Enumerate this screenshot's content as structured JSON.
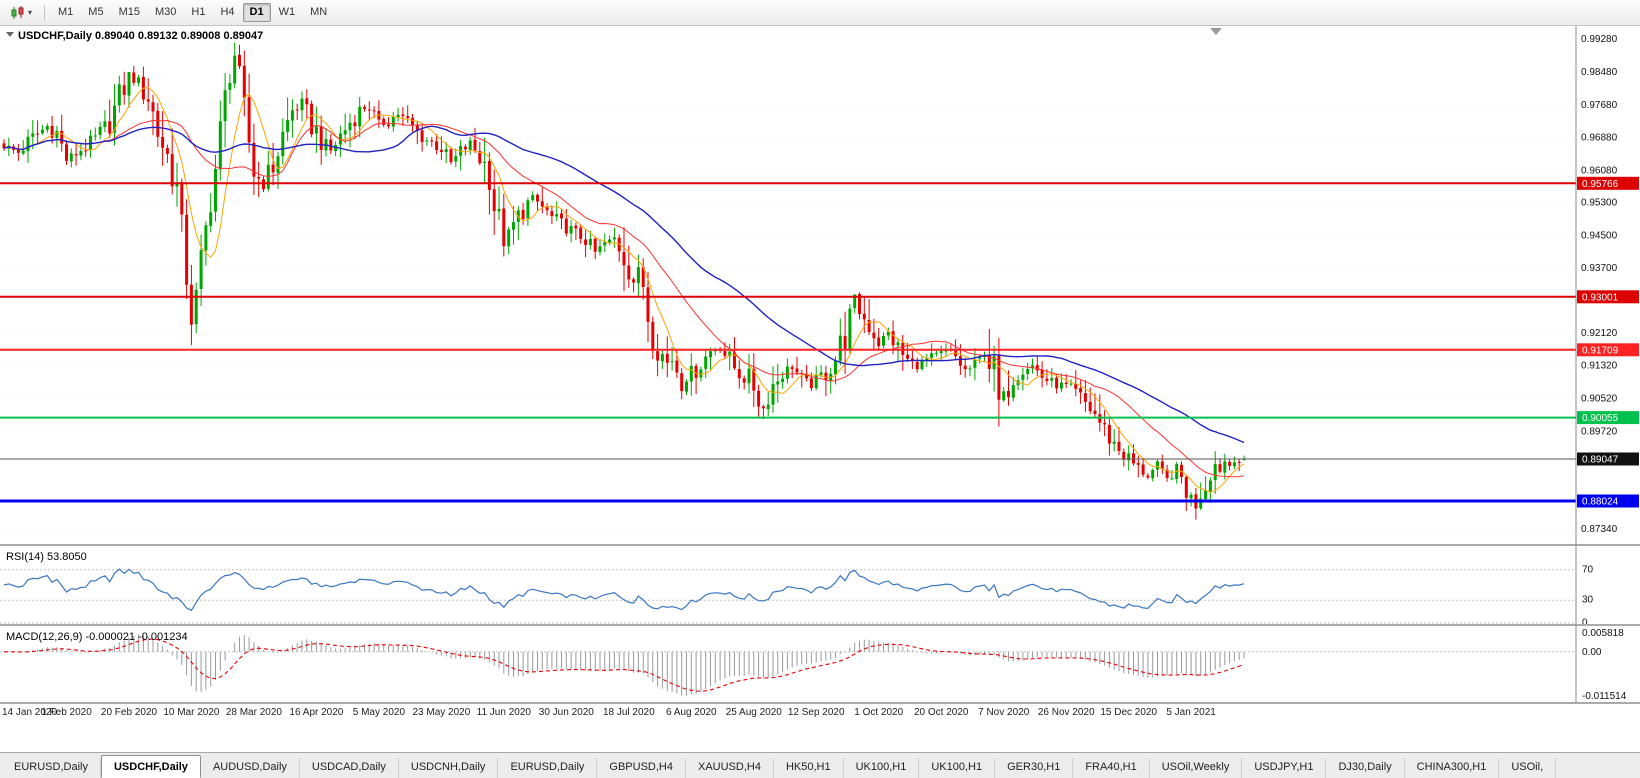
{
  "toolbar": {
    "chart_type_button": "candlestick-chart",
    "timeframes": [
      "M1",
      "M5",
      "M15",
      "M30",
      "H1",
      "H4",
      "D1",
      "W1",
      "MN"
    ],
    "active_timeframe": "D1"
  },
  "chart": {
    "title_symbol": "USDCHF,Daily",
    "title_ohlc": "0.89040 0.89132 0.89008 0.89047",
    "price_scale_labels": [
      "0.99280",
      "0.98480",
      "0.97680",
      "0.96880",
      "0.96080",
      "0.95300",
      "0.94500",
      "0.93700",
      "0.92120",
      "0.91320",
      "0.90520",
      "0.89720",
      "0.87340"
    ],
    "hlines": [
      {
        "price": 0.95766,
        "label": "0.95766",
        "color": "#dd0000",
        "width": 2
      },
      {
        "price": 0.93001,
        "label": "0.93001",
        "color": "#dd0000",
        "width": 2
      },
      {
        "price": 0.91709,
        "label": "0.91709",
        "color": "#ff2222",
        "width": 2
      },
      {
        "price": 0.90055,
        "label": "0.90055",
        "color": "#00c14e",
        "width": 2
      },
      {
        "price": 0.88024,
        "label": "0.88024",
        "color": "#0000ee",
        "width": 3
      }
    ],
    "current_price": {
      "label": "0.89047",
      "price": 0.89047
    },
    "colors": {
      "up": "#00a600",
      "down": "#e60000",
      "ma_fast": "#ffa500",
      "ma_mid": "#ff3030",
      "ma_slow": "#2121c4",
      "rsi_line": "#3a76c4",
      "macd_hist": "#9a9a9a",
      "macd_signal": "#e80000",
      "price_line": "#555555"
    }
  },
  "indicators": {
    "rsi": {
      "label": "RSI(14)",
      "value_text": "53.8050",
      "levels": [
        "70",
        "30",
        "0"
      ]
    },
    "macd": {
      "label": "MACD(12,26,9)",
      "values_text": "-0.000021 -0.001234",
      "scale_max": 0.005818,
      "scale_min": -0.011514,
      "scale_labels": [
        "0.005818",
        "0.00",
        "-0.011514"
      ]
    }
  },
  "chart_data": {
    "type": "candlestick",
    "symbol": "USDCHF",
    "timeframe": "Daily",
    "bar_count": 259,
    "y_range": [
      0.87,
      0.996
    ],
    "date_labels": [
      "14 Jan 2020",
      "1 Feb 2020",
      "20 Feb 2020",
      "10 Mar 2020",
      "28 Mar 2020",
      "16 Apr 2020",
      "5 May 2020",
      "23 May 2020",
      "11 Jun 2020",
      "30 Jun 2020",
      "18 Jul 2020",
      "6 Aug 2020",
      "25 Aug 2020",
      "12 Sep 2020",
      "1 Oct 2020",
      "20 Oct 2020",
      "7 Nov 2020",
      "26 Nov 2020",
      "15 Dec 2020",
      "5 Jan 2021"
    ],
    "date_tick_step": 13,
    "anchor_points": [
      [
        0,
        0.9668
      ],
      [
        3,
        0.9652
      ],
      [
        6,
        0.9688
      ],
      [
        9,
        0.9716
      ],
      [
        11,
        0.9698
      ],
      [
        13,
        0.9636
      ],
      [
        15,
        0.965
      ],
      [
        18,
        0.9674
      ],
      [
        21,
        0.9706
      ],
      [
        24,
        0.978
      ],
      [
        26,
        0.9838
      ],
      [
        28,
        0.9816
      ],
      [
        30,
        0.979
      ],
      [
        32,
        0.9702
      ],
      [
        34,
        0.9642
      ],
      [
        36,
        0.9566
      ],
      [
        38,
        0.9352
      ],
      [
        39,
        0.9248
      ],
      [
        40,
        0.9292
      ],
      [
        41,
        0.9382
      ],
      [
        42,
        0.9462
      ],
      [
        43,
        0.9544
      ],
      [
        44,
        0.9612
      ],
      [
        45,
        0.97
      ],
      [
        46,
        0.9782
      ],
      [
        47,
        0.9858
      ],
      [
        48,
        0.989
      ],
      [
        49,
        0.9818
      ],
      [
        50,
        0.9748
      ],
      [
        51,
        0.9678
      ],
      [
        52,
        0.9606
      ],
      [
        54,
        0.9572
      ],
      [
        56,
        0.9622
      ],
      [
        58,
        0.9692
      ],
      [
        60,
        0.9754
      ],
      [
        62,
        0.9768
      ],
      [
        64,
        0.9722
      ],
      [
        66,
        0.9682
      ],
      [
        68,
        0.9656
      ],
      [
        70,
        0.9692
      ],
      [
        72,
        0.9726
      ],
      [
        74,
        0.9754
      ],
      [
        76,
        0.9766
      ],
      [
        78,
        0.9714
      ],
      [
        80,
        0.973
      ],
      [
        82,
        0.9746
      ],
      [
        84,
        0.9724
      ],
      [
        86,
        0.97
      ],
      [
        88,
        0.9682
      ],
      [
        91,
        0.9664
      ],
      [
        93,
        0.9626
      ],
      [
        95,
        0.9652
      ],
      [
        97,
        0.9674
      ],
      [
        99,
        0.964
      ],
      [
        101,
        0.9602
      ],
      [
        102,
        0.9522
      ],
      [
        104,
        0.9438
      ],
      [
        106,
        0.9472
      ],
      [
        108,
        0.9516
      ],
      [
        110,
        0.9542
      ],
      [
        112,
        0.9518
      ],
      [
        114,
        0.9492
      ],
      [
        117,
        0.947
      ],
      [
        119,
        0.9454
      ],
      [
        121,
        0.9442
      ],
      [
        123,
        0.9408
      ],
      [
        125,
        0.943
      ],
      [
        127,
        0.9442
      ],
      [
        129,
        0.9402
      ],
      [
        131,
        0.9342
      ],
      [
        133,
        0.9332
      ],
      [
        134,
        0.9258
      ],
      [
        135,
        0.9212
      ],
      [
        136,
        0.9188
      ],
      [
        137,
        0.9158
      ],
      [
        138,
        0.9138
      ],
      [
        139,
        0.9152
      ],
      [
        140,
        0.9122
      ],
      [
        141,
        0.9088
      ],
      [
        143,
        0.911
      ],
      [
        145,
        0.9138
      ],
      [
        147,
        0.9168
      ],
      [
        149,
        0.918
      ],
      [
        151,
        0.9142
      ],
      [
        153,
        0.9114
      ],
      [
        155,
        0.9096
      ],
      [
        156,
        0.9082
      ],
      [
        157,
        0.9044
      ],
      [
        158,
        0.9028
      ],
      [
        159,
        0.906
      ],
      [
        160,
        0.9086
      ],
      [
        162,
        0.9116
      ],
      [
        164,
        0.9132
      ],
      [
        166,
        0.9096
      ],
      [
        168,
        0.9084
      ],
      [
        169,
        0.9094
      ],
      [
        171,
        0.9116
      ],
      [
        173,
        0.915
      ],
      [
        175,
        0.9206
      ],
      [
        177,
        0.9288
      ],
      [
        178,
        0.9262
      ],
      [
        180,
        0.9232
      ],
      [
        182,
        0.9186
      ],
      [
        184,
        0.9212
      ],
      [
        186,
        0.9172
      ],
      [
        188,
        0.9144
      ],
      [
        190,
        0.913
      ],
      [
        192,
        0.9146
      ],
      [
        194,
        0.9154
      ],
      [
        196,
        0.917
      ],
      [
        198,
        0.9152
      ],
      [
        200,
        0.912
      ],
      [
        202,
        0.913
      ],
      [
        204,
        0.9164
      ],
      [
        206,
        0.9122
      ],
      [
        207,
        0.9042
      ],
      [
        208,
        0.906
      ],
      [
        210,
        0.9106
      ],
      [
        212,
        0.9124
      ],
      [
        214,
        0.9132
      ],
      [
        216,
        0.9106
      ],
      [
        218,
        0.909
      ],
      [
        221,
        0.908
      ],
      [
        223,
        0.9064
      ],
      [
        225,
        0.904
      ],
      [
        227,
        0.9014
      ],
      [
        229,
        0.8974
      ],
      [
        231,
        0.8942
      ],
      [
        233,
        0.8916
      ],
      [
        234,
        0.8904
      ],
      [
        236,
        0.888
      ],
      [
        238,
        0.8864
      ],
      [
        240,
        0.889
      ],
      [
        242,
        0.8854
      ],
      [
        244,
        0.888
      ],
      [
        246,
        0.8834
      ],
      [
        247,
        0.881
      ],
      [
        248,
        0.879
      ],
      [
        249,
        0.8826
      ],
      [
        250,
        0.8848
      ],
      [
        251,
        0.8874
      ],
      [
        252,
        0.8892
      ],
      [
        253,
        0.888
      ],
      [
        254,
        0.89
      ],
      [
        255,
        0.889
      ],
      [
        256,
        0.8904
      ],
      [
        257,
        0.8898
      ],
      [
        258,
        0.89047
      ]
    ],
    "special_bars": [
      {
        "i": 26,
        "high": 0.9848
      },
      {
        "i": 39,
        "low": 0.9182
      },
      {
        "i": 48,
        "high": 0.992
      },
      {
        "i": 141,
        "low": 0.905
      },
      {
        "i": 158,
        "low": 0.9002
      },
      {
        "i": 177,
        "high": 0.9296
      },
      {
        "i": 207,
        "low": 0.8984
      },
      {
        "i": 248,
        "low": 0.8757
      }
    ],
    "last_bar": {
      "open": 0.8904,
      "high": 0.89132,
      "low": 0.89008,
      "close": 0.89047
    }
  },
  "tabs": [
    {
      "label": "EURUSD,Daily",
      "active": false
    },
    {
      "label": "USDCHF,Daily",
      "active": true
    },
    {
      "label": "AUDUSD,Daily",
      "active": false
    },
    {
      "label": "USDCAD,Daily",
      "active": false
    },
    {
      "label": "USDCNH,Daily",
      "active": false
    },
    {
      "label": "EURUSD,Daily",
      "active": false
    },
    {
      "label": "GBPUSD,H4",
      "active": false
    },
    {
      "label": "XAUUSD,H4",
      "active": false
    },
    {
      "label": "HK50,H1",
      "active": false
    },
    {
      "label": "UK100,H1",
      "active": false
    },
    {
      "label": "UK100,H1",
      "active": false
    },
    {
      "label": "GER30,H1",
      "active": false
    },
    {
      "label": "FRA40,H1",
      "active": false
    },
    {
      "label": "USOil,Weekly",
      "active": false
    },
    {
      "label": "USDJPY,H1",
      "active": false
    },
    {
      "label": "DJ30,Daily",
      "active": false
    },
    {
      "label": "CHINA300,H1",
      "active": false
    },
    {
      "label": "USOil,",
      "active": false
    }
  ]
}
